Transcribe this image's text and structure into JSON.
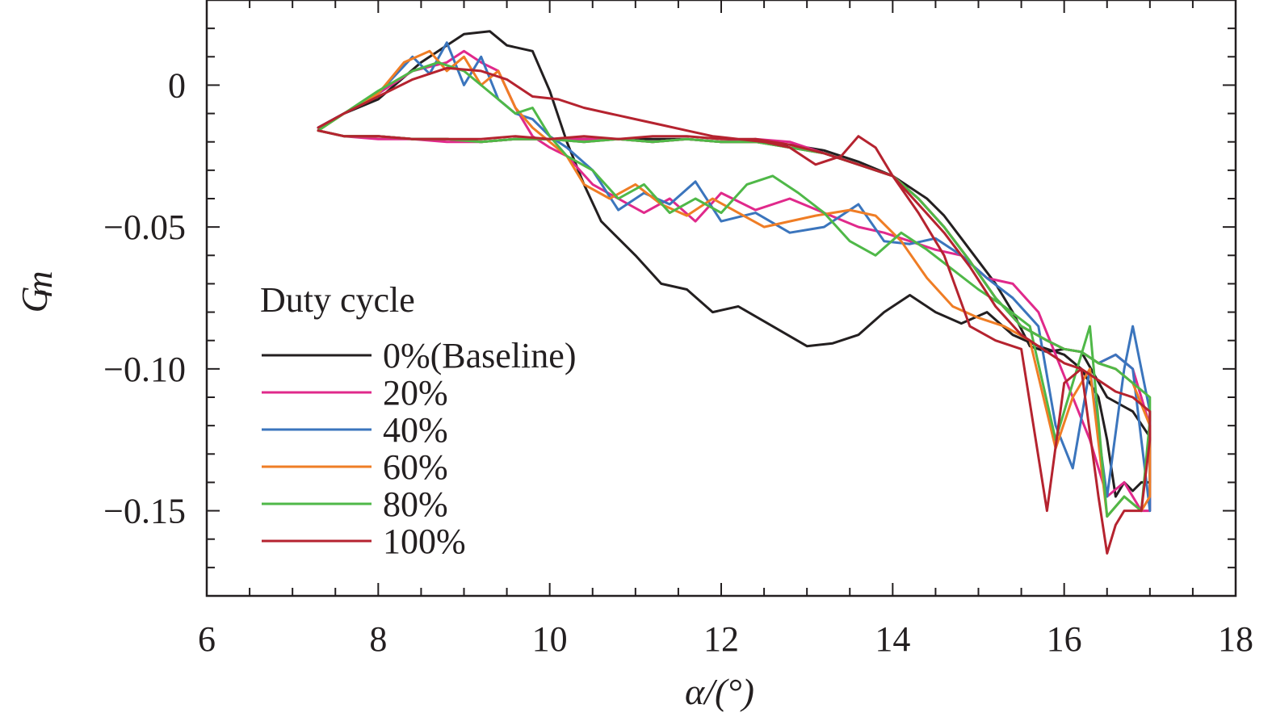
{
  "chart_data": {
    "type": "line",
    "xlabel": "α/(°)",
    "ylabel": "C",
    "ylabel_sub": "m",
    "xlim": [
      6,
      18
    ],
    "ylim": [
      -0.18,
      0.03
    ],
    "x_ticks": [
      6,
      8,
      10,
      12,
      14,
      16,
      18
    ],
    "x_tick_labels": [
      "6",
      "8",
      "10",
      "12",
      "14",
      "16",
      "18"
    ],
    "y_ticks": [
      0,
      -0.05,
      -0.1,
      -0.15
    ],
    "y_tick_labels": [
      "0",
      "−0.05",
      "−0.10",
      "−0.15"
    ],
    "grid": false,
    "legend": {
      "title": "Duty cycle",
      "placement": "lower-left"
    },
    "series": [
      {
        "name": "0%(Baseline)",
        "color": "#231f20",
        "x": [
          7.3,
          7.6,
          8.0,
          8.5,
          9.0,
          9.3,
          9.5,
          9.8,
          10.0,
          10.2,
          10.4,
          10.6,
          11.0,
          11.3,
          11.6,
          11.9,
          12.2,
          12.6,
          13.0,
          13.3,
          13.6,
          13.9,
          14.2,
          14.5,
          14.8,
          15.1,
          15.4,
          15.7,
          16.0,
          16.2,
          16.4,
          16.5,
          16.6,
          16.7,
          16.8,
          16.9,
          17.0,
          17.0,
          16.8,
          16.5,
          16.2,
          16.0,
          15.8,
          15.6,
          15.4,
          15.2,
          15.0,
          14.8,
          14.6,
          14.4,
          14.0,
          13.6,
          13.2,
          12.8,
          12.4,
          12.0,
          11.6,
          11.2,
          10.8,
          10.4,
          10.0,
          9.6,
          9.2,
          8.8,
          8.4,
          8.0,
          7.6,
          7.3
        ],
        "y": [
          -0.015,
          -0.01,
          -0.005,
          0.008,
          0.018,
          0.019,
          0.014,
          0.012,
          -0.002,
          -0.02,
          -0.035,
          -0.048,
          -0.06,
          -0.07,
          -0.072,
          -0.08,
          -0.078,
          -0.085,
          -0.092,
          -0.091,
          -0.088,
          -0.08,
          -0.074,
          -0.08,
          -0.084,
          -0.08,
          -0.088,
          -0.092,
          -0.095,
          -0.1,
          -0.11,
          -0.125,
          -0.145,
          -0.14,
          -0.143,
          -0.14,
          -0.14,
          -0.124,
          -0.115,
          -0.11,
          -0.094,
          -0.093,
          -0.094,
          -0.092,
          -0.08,
          -0.07,
          -0.062,
          -0.054,
          -0.046,
          -0.04,
          -0.032,
          -0.027,
          -0.023,
          -0.021,
          -0.02,
          -0.02,
          -0.019,
          -0.019,
          -0.019,
          -0.019,
          -0.019,
          -0.019,
          -0.02,
          -0.019,
          -0.019,
          -0.018,
          -0.018,
          -0.016
        ]
      },
      {
        "name": "20%",
        "color": "#e0298b",
        "x": [
          7.3,
          7.6,
          8.0,
          8.4,
          8.8,
          9.0,
          9.2,
          9.4,
          9.6,
          9.8,
          10.0,
          10.2,
          10.5,
          10.8,
          11.1,
          11.4,
          11.7,
          12.0,
          12.4,
          12.8,
          13.2,
          13.6,
          13.9,
          14.2,
          14.5,
          14.8,
          15.1,
          15.4,
          15.7,
          15.9,
          16.1,
          16.3,
          16.5,
          16.7,
          16.9,
          17.0,
          17.0,
          16.8,
          16.6,
          16.4,
          16.2,
          16.0,
          15.8,
          15.5,
          15.2,
          14.9,
          14.6,
          14.3,
          14.0,
          13.6,
          13.2,
          12.8,
          12.4,
          12.0,
          11.6,
          11.2,
          10.8,
          10.4,
          10.0,
          9.6,
          9.2,
          8.8,
          8.4,
          8.0,
          7.6,
          7.3
        ],
        "y": [
          -0.015,
          -0.01,
          -0.003,
          0.005,
          0.008,
          0.012,
          0.008,
          0.005,
          -0.008,
          -0.018,
          -0.022,
          -0.025,
          -0.035,
          -0.04,
          -0.045,
          -0.04,
          -0.048,
          -0.038,
          -0.044,
          -0.04,
          -0.045,
          -0.05,
          -0.052,
          -0.055,
          -0.058,
          -0.06,
          -0.068,
          -0.07,
          -0.08,
          -0.095,
          -0.11,
          -0.125,
          -0.145,
          -0.14,
          -0.15,
          -0.15,
          -0.12,
          -0.1,
          -0.095,
          -0.098,
          -0.094,
          -0.093,
          -0.09,
          -0.085,
          -0.075,
          -0.062,
          -0.05,
          -0.04,
          -0.032,
          -0.028,
          -0.024,
          -0.02,
          -0.019,
          -0.02,
          -0.019,
          -0.02,
          -0.019,
          -0.019,
          -0.019,
          -0.019,
          -0.02,
          -0.02,
          -0.019,
          -0.019,
          -0.018,
          -0.016
        ]
      },
      {
        "name": "40%",
        "color": "#3b75bd",
        "x": [
          7.3,
          7.6,
          8.0,
          8.4,
          8.6,
          8.8,
          9.0,
          9.2,
          9.4,
          9.6,
          9.8,
          10.0,
          10.2,
          10.5,
          10.8,
          11.1,
          11.4,
          11.7,
          12.0,
          12.4,
          12.8,
          13.2,
          13.6,
          13.9,
          14.2,
          14.5,
          14.8,
          15.1,
          15.4,
          15.7,
          15.9,
          16.1,
          16.3,
          16.5,
          16.7,
          16.8,
          16.9,
          17.0,
          17.0,
          16.8,
          16.6,
          16.4,
          16.2,
          16.0,
          15.8,
          15.5,
          15.2,
          14.9,
          14.6,
          14.3,
          14.0,
          13.6,
          13.2,
          12.8,
          12.4,
          12.0,
          11.6,
          11.2,
          10.8,
          10.4,
          10.0,
          9.6,
          9.2,
          8.8,
          8.4,
          8.0,
          7.6,
          7.3
        ],
        "y": [
          -0.015,
          -0.01,
          -0.003,
          0.01,
          0.004,
          0.015,
          0.0,
          0.01,
          -0.005,
          -0.01,
          -0.012,
          -0.018,
          -0.022,
          -0.03,
          -0.044,
          -0.038,
          -0.042,
          -0.034,
          -0.048,
          -0.045,
          -0.052,
          -0.05,
          -0.042,
          -0.055,
          -0.056,
          -0.054,
          -0.06,
          -0.068,
          -0.075,
          -0.085,
          -0.12,
          -0.135,
          -0.1,
          -0.145,
          -0.1,
          -0.085,
          -0.1,
          -0.115,
          -0.15,
          -0.1,
          -0.095,
          -0.098,
          -0.094,
          -0.093,
          -0.09,
          -0.085,
          -0.075,
          -0.062,
          -0.05,
          -0.04,
          -0.032,
          -0.028,
          -0.024,
          -0.022,
          -0.02,
          -0.02,
          -0.019,
          -0.02,
          -0.019,
          -0.02,
          -0.019,
          -0.019,
          -0.02,
          -0.019,
          -0.019,
          -0.018,
          -0.018,
          -0.016
        ]
      },
      {
        "name": "60%",
        "color": "#ef7d25",
        "x": [
          7.3,
          7.6,
          8.0,
          8.3,
          8.6,
          8.8,
          9.0,
          9.2,
          9.4,
          9.6,
          9.8,
          10.0,
          10.2,
          10.4,
          10.7,
          11.0,
          11.3,
          11.6,
          11.9,
          12.2,
          12.5,
          12.8,
          13.1,
          13.5,
          13.8,
          14.1,
          14.4,
          14.7,
          15.0,
          15.3,
          15.6,
          15.9,
          16.1,
          16.3,
          16.5,
          16.7,
          16.9,
          17.0,
          17.0,
          16.8,
          16.6,
          16.4,
          16.2,
          16.0,
          15.8,
          15.5,
          15.2,
          14.9,
          14.6,
          14.3,
          14.0,
          13.6,
          13.2,
          12.8,
          12.4,
          12.0,
          11.6,
          11.2,
          10.8,
          10.4,
          10.0,
          9.6,
          9.2,
          8.8,
          8.4,
          8.0,
          7.6,
          7.3
        ],
        "y": [
          -0.016,
          -0.01,
          -0.003,
          0.008,
          0.012,
          0.005,
          0.01,
          0.0,
          0.005,
          -0.008,
          -0.015,
          -0.02,
          -0.025,
          -0.035,
          -0.04,
          -0.035,
          -0.042,
          -0.046,
          -0.04,
          -0.045,
          -0.05,
          -0.048,
          -0.046,
          -0.044,
          -0.046,
          -0.055,
          -0.068,
          -0.078,
          -0.082,
          -0.085,
          -0.09,
          -0.128,
          -0.11,
          -0.1,
          -0.152,
          -0.145,
          -0.15,
          -0.145,
          -0.12,
          -0.105,
          -0.1,
          -0.098,
          -0.094,
          -0.093,
          -0.09,
          -0.085,
          -0.075,
          -0.062,
          -0.05,
          -0.04,
          -0.032,
          -0.028,
          -0.024,
          -0.022,
          -0.02,
          -0.02,
          -0.019,
          -0.02,
          -0.019,
          -0.02,
          -0.019,
          -0.019,
          -0.02,
          -0.019,
          -0.019,
          -0.018,
          -0.018,
          -0.016
        ]
      },
      {
        "name": "80%",
        "color": "#4fb848",
        "x": [
          7.3,
          7.6,
          8.0,
          8.4,
          8.7,
          9.0,
          9.2,
          9.4,
          9.6,
          9.8,
          10.0,
          10.2,
          10.5,
          10.8,
          11.1,
          11.4,
          11.7,
          12.0,
          12.3,
          12.6,
          12.9,
          13.2,
          13.5,
          13.8,
          14.1,
          14.4,
          14.7,
          15.0,
          15.3,
          15.6,
          15.9,
          16.1,
          16.3,
          16.5,
          16.7,
          16.9,
          17.0,
          17.0,
          16.8,
          16.6,
          16.4,
          16.2,
          16.0,
          15.8,
          15.5,
          15.2,
          14.9,
          14.6,
          14.3,
          14.0,
          13.6,
          13.2,
          12.8,
          12.4,
          12.0,
          11.6,
          11.2,
          10.8,
          10.4,
          10.0,
          9.6,
          9.2,
          8.8,
          8.4,
          8.0,
          7.6,
          7.3
        ],
        "y": [
          -0.016,
          -0.01,
          -0.002,
          0.005,
          0.008,
          0.005,
          0.0,
          -0.005,
          -0.01,
          -0.008,
          -0.018,
          -0.025,
          -0.03,
          -0.04,
          -0.035,
          -0.045,
          -0.04,
          -0.045,
          -0.035,
          -0.032,
          -0.038,
          -0.045,
          -0.055,
          -0.06,
          -0.052,
          -0.058,
          -0.065,
          -0.072,
          -0.078,
          -0.085,
          -0.125,
          -0.105,
          -0.085,
          -0.152,
          -0.145,
          -0.15,
          -0.118,
          -0.11,
          -0.105,
          -0.1,
          -0.098,
          -0.094,
          -0.093,
          -0.09,
          -0.085,
          -0.075,
          -0.062,
          -0.05,
          -0.04,
          -0.032,
          -0.028,
          -0.024,
          -0.022,
          -0.02,
          -0.02,
          -0.019,
          -0.02,
          -0.019,
          -0.02,
          -0.019,
          -0.019,
          -0.02,
          -0.019,
          -0.019,
          -0.018,
          -0.018,
          -0.016
        ]
      },
      {
        "name": "100%",
        "color": "#b5232f",
        "x": [
          7.3,
          7.6,
          8.0,
          8.4,
          8.8,
          9.2,
          9.5,
          9.8,
          10.1,
          10.4,
          10.7,
          11.0,
          11.3,
          11.6,
          11.9,
          12.2,
          12.5,
          12.8,
          13.1,
          13.4,
          13.6,
          13.8,
          14.0,
          14.3,
          14.6,
          14.9,
          15.2,
          15.5,
          15.8,
          16.0,
          16.2,
          16.4,
          16.5,
          16.6,
          16.7,
          16.9,
          17.0,
          17.0,
          16.8,
          16.6,
          16.4,
          16.2,
          16.0,
          15.8,
          15.5,
          15.2,
          14.9,
          14.6,
          14.3,
          14.0,
          13.6,
          13.2,
          12.8,
          12.4,
          12.0,
          11.6,
          11.2,
          10.8,
          10.4,
          10.0,
          9.6,
          9.2,
          8.8,
          8.4,
          8.0,
          7.6,
          7.3
        ],
        "y": [
          -0.015,
          -0.01,
          -0.004,
          0.002,
          0.006,
          0.005,
          0.002,
          -0.004,
          -0.005,
          -0.008,
          -0.01,
          -0.012,
          -0.014,
          -0.016,
          -0.018,
          -0.019,
          -0.02,
          -0.022,
          -0.028,
          -0.025,
          -0.018,
          -0.022,
          -0.032,
          -0.045,
          -0.06,
          -0.085,
          -0.09,
          -0.093,
          -0.15,
          -0.105,
          -0.1,
          -0.145,
          -0.165,
          -0.155,
          -0.15,
          -0.15,
          -0.125,
          -0.115,
          -0.11,
          -0.108,
          -0.104,
          -0.1,
          -0.098,
          -0.094,
          -0.088,
          -0.078,
          -0.064,
          -0.052,
          -0.042,
          -0.032,
          -0.028,
          -0.024,
          -0.021,
          -0.019,
          -0.019,
          -0.018,
          -0.018,
          -0.019,
          -0.018,
          -0.019,
          -0.018,
          -0.019,
          -0.019,
          -0.019,
          -0.018,
          -0.018,
          -0.016
        ]
      }
    ]
  }
}
